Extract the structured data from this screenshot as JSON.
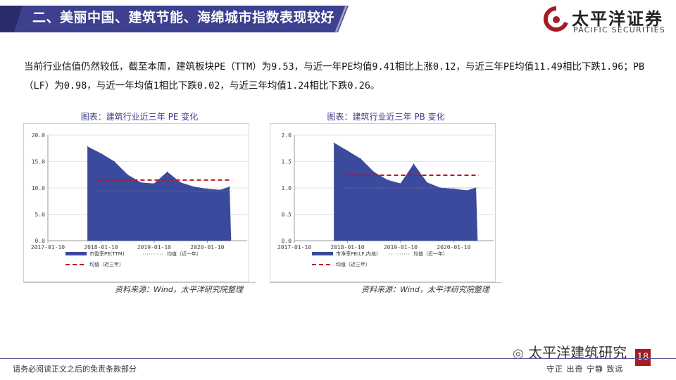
{
  "header": {
    "title": "二、美丽中国、建筑节能、海绵城市指数表现较好"
  },
  "logo": {
    "cn": "太平洋证券",
    "en": "PACIFIC SECURITIES"
  },
  "intro_text": "当前行业估值仍然较低，截至本周，建筑板块PE（TTM）为9.53，与近一年PE均值9.41相比上涨0.12，与近三年PE均值11.49相比下跌1.96；PB（LF）为0.98，与近一年均值1相比下跌0.02，与近三年均值1.24相比下跌0.26。",
  "charts": [
    {
      "title": "图表：建筑行业近三年 PE 变化",
      "y_ticks": [
        "20.0",
        "15.0",
        "10.0",
        "5.0",
        "0.0"
      ],
      "x_ticks": [
        "2017-01-10",
        "2018-01-10",
        "2019-01-10",
        "2020-01-10"
      ],
      "legend": {
        "series": "市盈率PE(TTM)",
        "avg1": "均值（近一年）",
        "avg3": "均值（近三年）"
      },
      "source": "资料来源：Wind，太平洋研究院整理"
    },
    {
      "title": "图表：建筑行业近三年 PB 变化",
      "y_ticks": [
        "2.0",
        "1.5",
        "1.0",
        "0.5",
        "0.0"
      ],
      "x_ticks": [
        "2017-01-10",
        "2018-01-10",
        "2019-01-10",
        "2020-01-10"
      ],
      "legend": {
        "series": "市净率PB(LF,内地)",
        "avg1": "均值（近一年）",
        "avg3": "均值（近三年）"
      },
      "source": "资料来源：Wind，太平洋研究院整理"
    }
  ],
  "chart_data": [
    {
      "type": "area",
      "title": "图表：建筑行业近三年 PE 变化",
      "x": [
        "2017-10-10",
        "2018-01-10",
        "2018-04-10",
        "2018-07-10",
        "2018-10-10",
        "2019-01-10",
        "2019-04-10",
        "2019-07-10",
        "2019-10-10",
        "2020-01-10",
        "2020-04-10",
        "2020-06-10",
        "2020-06-20"
      ],
      "series": [
        {
          "name": "市盈率PE(TTM)",
          "values": [
            17.8,
            16.5,
            15.0,
            12.5,
            11.0,
            10.8,
            13.0,
            11.0,
            10.2,
            9.8,
            9.6,
            10.2,
            0.5
          ]
        }
      ],
      "reference_lines": [
        {
          "name": "均值（近三年）",
          "value": 11.49,
          "style": "dashed",
          "color": "#c0141c"
        },
        {
          "name": "均值（近一年）",
          "value": 9.41,
          "style": "dotted",
          "color": "#888888"
        }
      ],
      "ylim": [
        0,
        20
      ],
      "y_ticks": [
        0,
        5,
        10,
        15,
        20
      ],
      "x_ticks": [
        "2017-01-10",
        "2018-01-10",
        "2019-01-10",
        "2020-01-10"
      ],
      "series_color": "#3b4a9c",
      "legend_position": "bottom"
    },
    {
      "type": "area",
      "title": "图表：建筑行业近三年 PB 变化",
      "x": [
        "2017-10-10",
        "2018-01-10",
        "2018-04-10",
        "2018-07-10",
        "2018-10-10",
        "2019-01-10",
        "2019-04-10",
        "2019-07-10",
        "2019-10-10",
        "2020-01-10",
        "2020-04-10",
        "2020-06-10",
        "2020-06-20"
      ],
      "series": [
        {
          "name": "市净率PB(LF,内地)",
          "values": [
            1.85,
            1.7,
            1.55,
            1.3,
            1.15,
            1.08,
            1.45,
            1.1,
            1.0,
            0.98,
            0.95,
            1.0,
            0.05
          ]
        }
      ],
      "reference_lines": [
        {
          "name": "均值（近三年）",
          "value": 1.24,
          "style": "dashed",
          "color": "#c0141c"
        },
        {
          "name": "均值（近一年）",
          "value": 1.0,
          "style": "dotted",
          "color": "#888888"
        }
      ],
      "ylim": [
        0,
        2
      ],
      "y_ticks": [
        0,
        0.5,
        1.0,
        1.5,
        2.0
      ],
      "x_ticks": [
        "2017-01-10",
        "2018-01-10",
        "2019-01-10",
        "2020-01-10"
      ],
      "series_color": "#3b4a9c",
      "legend_position": "bottom"
    }
  ],
  "footer": {
    "disclaimer": "请务必阅读正文之后的免责条款部分",
    "motto": "守正 出奇 宁静 致远",
    "watermark": "太平洋建筑研究",
    "page_number": "18"
  },
  "colors": {
    "header_band": "#3d3f8f",
    "brand_red": "#a51d24",
    "series": "#3b4a9c",
    "avg3": "#c0141c"
  }
}
